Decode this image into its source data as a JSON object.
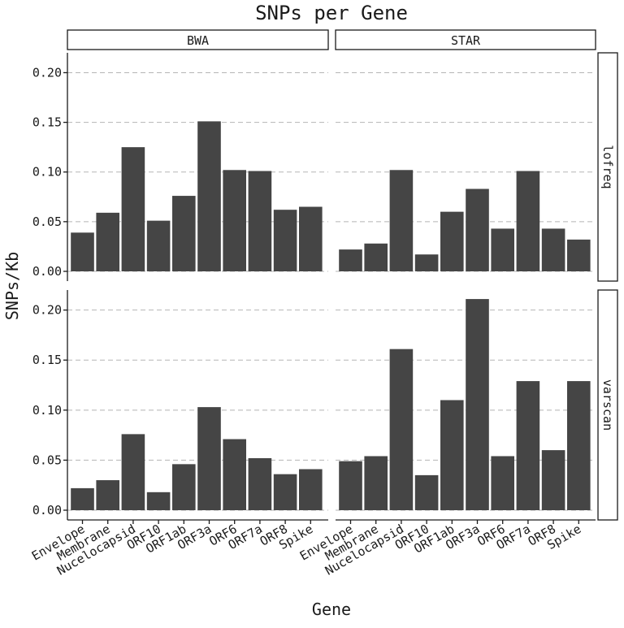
{
  "chart_data": {
    "type": "bar",
    "title": "SNPs per Gene",
    "xlabel": "Gene",
    "ylabel": "SNPs/Kb",
    "ylim": [
      0,
      0.22
    ],
    "yticks": [
      "0.00",
      "0.05",
      "0.10",
      "0.15",
      "0.20"
    ],
    "grid": "horizontal dashed major lines",
    "bar_color": "#454545",
    "categories": [
      "Envelope",
      "Membrane",
      "Nucelocapsid",
      "ORF10",
      "ORF1ab",
      "ORF3a",
      "ORF6",
      "ORF7a",
      "ORF8",
      "Spike"
    ],
    "facet_columns": [
      "BWA",
      "STAR"
    ],
    "facet_rows": [
      "lofreq",
      "varscan"
    ],
    "panels": [
      {
        "column": "BWA",
        "row": "lofreq",
        "values": [
          0.039,
          0.059,
          0.125,
          0.051,
          0.076,
          0.151,
          0.102,
          0.101,
          0.062,
          0.065
        ]
      },
      {
        "column": "STAR",
        "row": "lofreq",
        "values": [
          0.022,
          0.028,
          0.102,
          0.017,
          0.06,
          0.083,
          0.043,
          0.101,
          0.043,
          0.032
        ]
      },
      {
        "column": "BWA",
        "row": "varscan",
        "values": [
          0.022,
          0.03,
          0.076,
          0.018,
          0.046,
          0.103,
          0.071,
          0.052,
          0.036,
          0.041
        ]
      },
      {
        "column": "STAR",
        "row": "varscan",
        "values": [
          0.049,
          0.054,
          0.161,
          0.035,
          0.11,
          0.211,
          0.054,
          0.129,
          0.06,
          0.129
        ]
      }
    ]
  }
}
